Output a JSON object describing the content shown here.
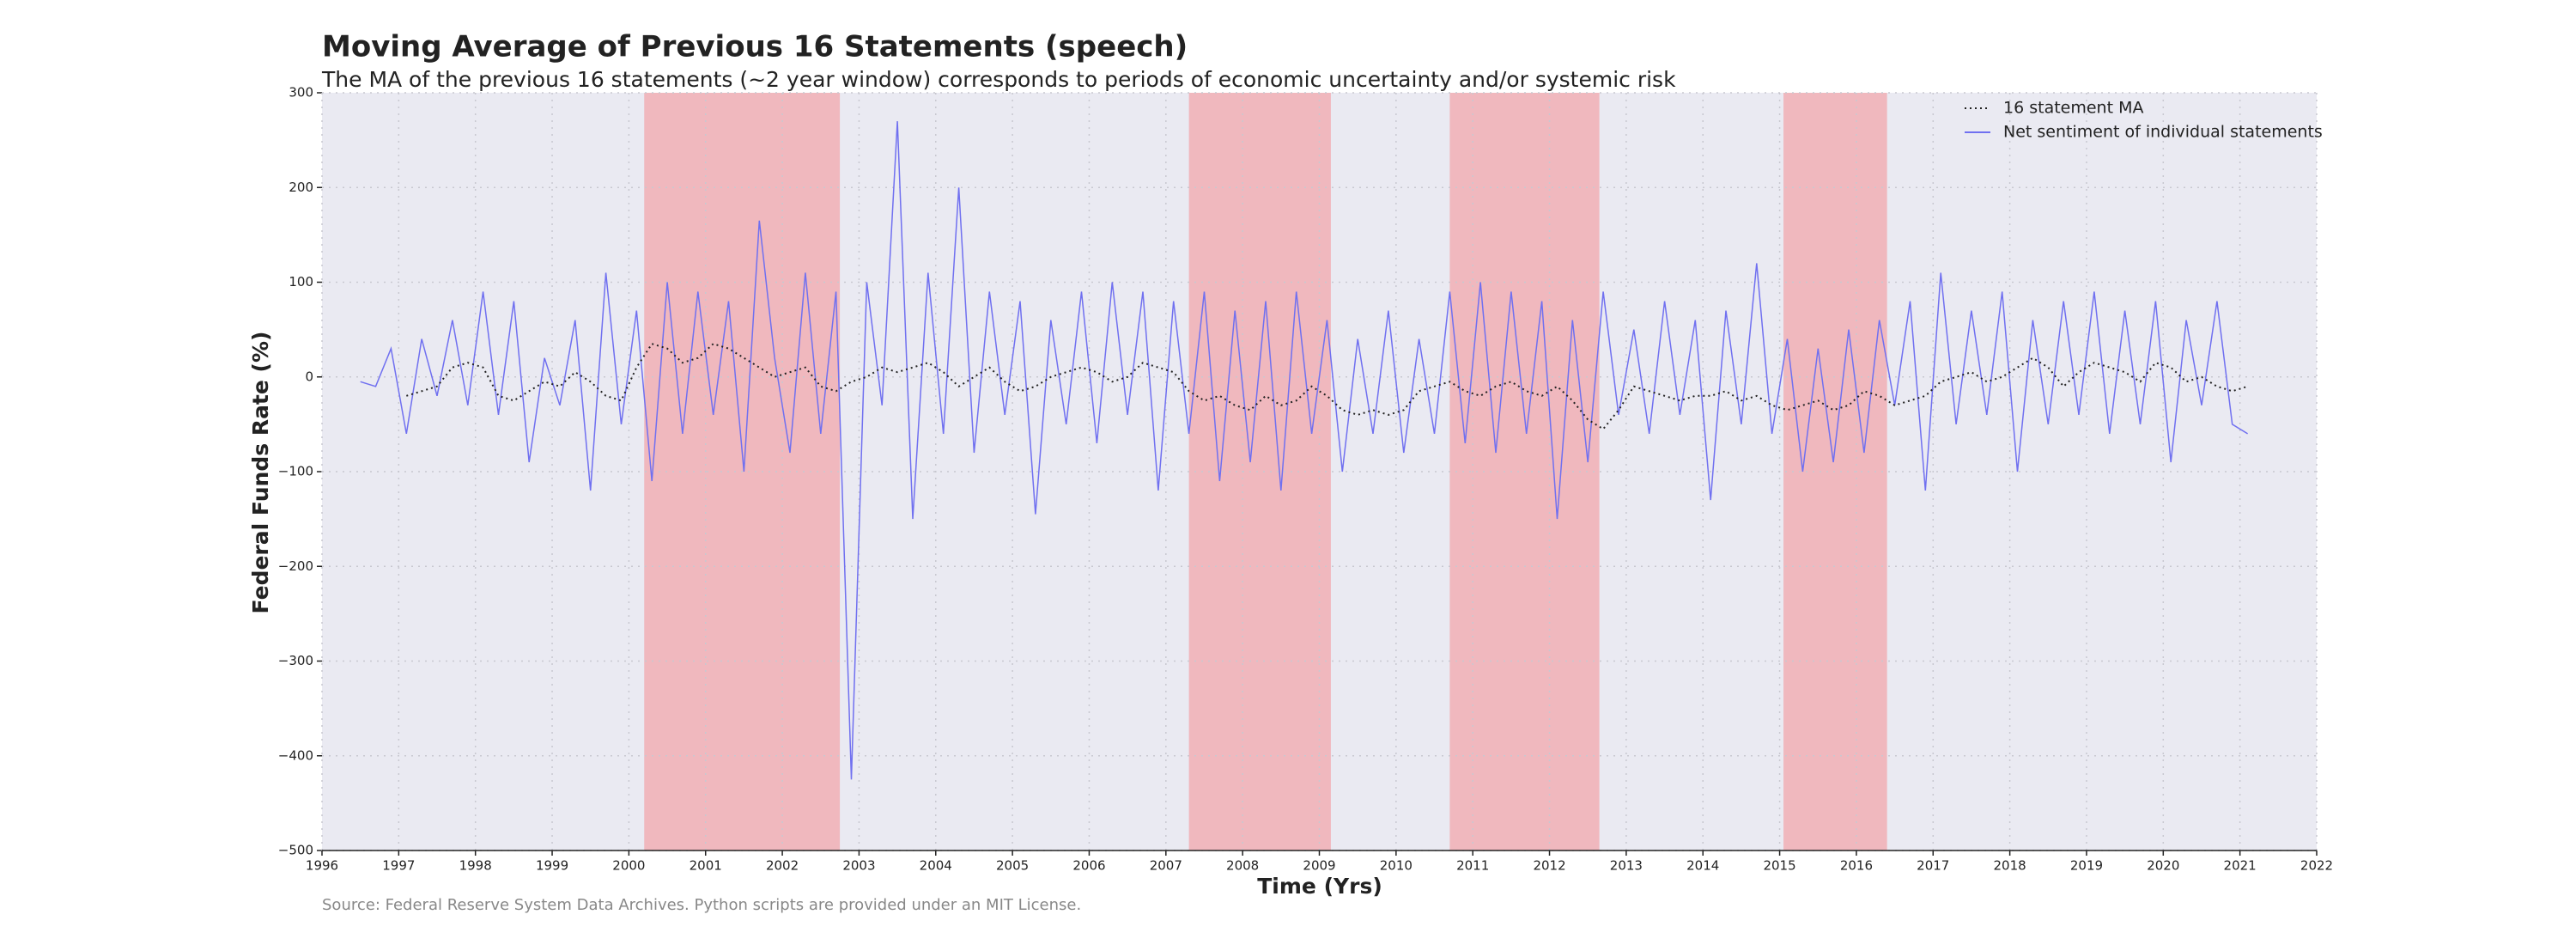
{
  "chart_data": {
    "type": "line",
    "title": "Moving Average of Previous 16 Statements (speech)",
    "subtitle": "The MA of the previous 16 statements (~2 year window) corresponds to periods of economic uncertainty and/or systemic risk",
    "x_label": "Time (Yrs)",
    "y_label": "Federal Funds Rate (%)",
    "source": "Source: Federal Reserve System Data Archives. Python scripts are provided under an MIT License.",
    "xlim": [
      1996,
      2022
    ],
    "xticks": [
      1996,
      1997,
      1998,
      1999,
      2000,
      2001,
      2002,
      2003,
      2004,
      2005,
      2006,
      2007,
      2008,
      2009,
      2010,
      2011,
      2012,
      2013,
      2014,
      2015,
      2016,
      2017,
      2018,
      2019,
      2020,
      2021,
      2022
    ],
    "ylim": [
      -500,
      300
    ],
    "yticks": [
      {
        "value": -500,
        "label": "−500"
      },
      {
        "value": -400,
        "label": "−400"
      },
      {
        "value": -300,
        "label": "−300"
      },
      {
        "value": -200,
        "label": "−200"
      },
      {
        "value": -100,
        "label": "−100"
      },
      0,
      100,
      200,
      300
    ],
    "grid": true,
    "legend": "upper right",
    "background": "#eaeaf2",
    "shade_color": "#f0b8be",
    "shaded_regions": [
      [
        2000.2,
        2002.75
      ],
      [
        2007.3,
        2009.15
      ],
      [
        2010.7,
        2012.65
      ],
      [
        2015.05,
        2016.4
      ]
    ],
    "x": [
      1996.5,
      1996.7,
      1996.9,
      1997.1,
      1997.3,
      1997.5,
      1997.7,
      1997.9,
      1998.1,
      1998.3,
      1998.5,
      1998.7,
      1998.9,
      1999.1,
      1999.3,
      1999.5,
      1999.7,
      1999.9,
      2000.1,
      2000.3,
      2000.5,
      2000.7,
      2000.9,
      2001.1,
      2001.3,
      2001.5,
      2001.7,
      2001.9,
      2002.1,
      2002.3,
      2002.5,
      2002.7,
      2002.9,
      2003.1,
      2003.3,
      2003.5,
      2003.7,
      2003.9,
      2004.1,
      2004.3,
      2004.5,
      2004.7,
      2004.9,
      2005.1,
      2005.3,
      2005.5,
      2005.7,
      2005.9,
      2006.1,
      2006.3,
      2006.5,
      2006.7,
      2006.9,
      2007.1,
      2007.3,
      2007.5,
      2007.7,
      2007.9,
      2008.1,
      2008.3,
      2008.5,
      2008.7,
      2008.9,
      2009.1,
      2009.3,
      2009.5,
      2009.7,
      2009.9,
      2010.1,
      2010.3,
      2010.5,
      2010.7,
      2010.9,
      2011.1,
      2011.3,
      2011.5,
      2011.7,
      2011.9,
      2012.1,
      2012.3,
      2012.5,
      2012.7,
      2012.9,
      2013.1,
      2013.3,
      2013.5,
      2013.7,
      2013.9,
      2014.1,
      2014.3,
      2014.5,
      2014.7,
      2014.9,
      2015.1,
      2015.3,
      2015.5,
      2015.7,
      2015.9,
      2016.1,
      2016.3,
      2016.5,
      2016.7,
      2016.9,
      2017.1,
      2017.3,
      2017.5,
      2017.7,
      2017.9,
      2018.1,
      2018.3,
      2018.5,
      2018.7,
      2018.9,
      2019.1,
      2019.3,
      2019.5,
      2019.7,
      2019.9,
      2020.1,
      2020.3,
      2020.5,
      2020.7,
      2020.9,
      2021.1
    ],
    "series": [
      {
        "name": "16 statement MA",
        "color": "#222222",
        "dash": true,
        "values": [
          null,
          null,
          null,
          -20,
          -15,
          -10,
          10,
          15,
          10,
          -20,
          -25,
          -15,
          -5,
          -10,
          5,
          -5,
          -20,
          -25,
          10,
          35,
          30,
          15,
          20,
          35,
          30,
          20,
          10,
          0,
          5,
          10,
          -10,
          -15,
          -5,
          0,
          10,
          5,
          10,
          15,
          5,
          -10,
          0,
          10,
          -5,
          -15,
          -10,
          0,
          5,
          10,
          5,
          -5,
          0,
          15,
          10,
          5,
          -15,
          -25,
          -20,
          -30,
          -35,
          -20,
          -30,
          -25,
          -10,
          -20,
          -35,
          -40,
          -35,
          -40,
          -35,
          -15,
          -10,
          -5,
          -15,
          -20,
          -10,
          -5,
          -15,
          -20,
          -10,
          -25,
          -45,
          -55,
          -35,
          -10,
          -15,
          -20,
          -25,
          -20,
          -20,
          -15,
          -25,
          -20,
          -30,
          -35,
          -30,
          -25,
          -35,
          -30,
          -15,
          -20,
          -30,
          -25,
          -20,
          -5,
          0,
          5,
          -5,
          0,
          10,
          20,
          10,
          -10,
          5,
          15,
          10,
          5,
          -5,
          15,
          10,
          -5,
          0,
          -10,
          -15,
          -10
        ]
      },
      {
        "name": "Net sentiment of individual statements",
        "color": "#7070f0",
        "dash": false,
        "values": [
          -5,
          -10,
          30,
          -60,
          40,
          -20,
          60,
          -30,
          90,
          -40,
          80,
          -90,
          20,
          -30,
          60,
          -120,
          110,
          -50,
          70,
          -110,
          100,
          -60,
          90,
          -40,
          80,
          -100,
          165,
          20,
          -80,
          110,
          -60,
          90,
          -425,
          100,
          -30,
          270,
          -150,
          110,
          -60,
          200,
          -80,
          90,
          -40,
          80,
          -145,
          60,
          -50,
          90,
          -70,
          100,
          -40,
          90,
          -120,
          80,
          -60,
          90,
          -110,
          70,
          -90,
          80,
          -120,
          90,
          -60,
          60,
          -100,
          40,
          -60,
          70,
          -80,
          40,
          -60,
          90,
          -70,
          100,
          -80,
          90,
          -60,
          80,
          -150,
          60,
          -90,
          90,
          -40,
          50,
          -60,
          80,
          -40,
          60,
          -130,
          70,
          -50,
          120,
          -60,
          40,
          -100,
          30,
          -90,
          50,
          -80,
          60,
          -30,
          80,
          -120,
          110,
          -50,
          70,
          -40,
          90,
          -100,
          60,
          -50,
          80,
          -40,
          90,
          -60,
          70,
          -50,
          80,
          -90,
          60,
          -30,
          80,
          -50,
          -60
        ]
      }
    ]
  }
}
